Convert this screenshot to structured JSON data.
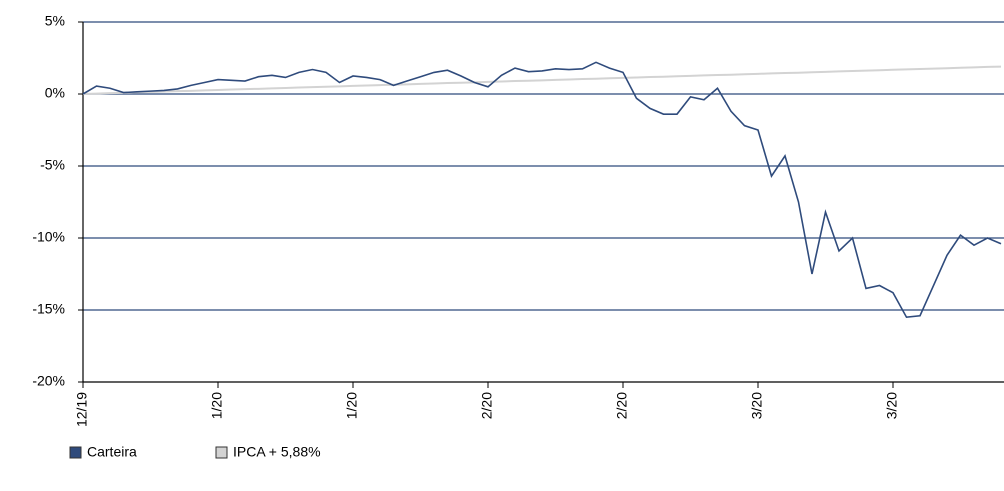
{
  "chart_data": {
    "type": "line",
    "categories": [
      "12/19",
      null,
      null,
      null,
      null,
      null,
      null,
      null,
      null,
      null,
      "1/20",
      null,
      null,
      null,
      null,
      null,
      null,
      null,
      null,
      null,
      "1/20",
      null,
      null,
      null,
      null,
      null,
      null,
      null,
      null,
      null,
      "2/20",
      null,
      null,
      null,
      null,
      null,
      null,
      null,
      null,
      null,
      "2/20",
      null,
      null,
      null,
      null,
      null,
      null,
      null,
      null,
      null,
      "3/20",
      null,
      null,
      null,
      null,
      null,
      null,
      null,
      null,
      null,
      "3/20",
      null,
      null,
      null,
      null,
      null,
      null,
      null,
      null
    ],
    "series": [
      {
        "name": "Carteira",
        "color": "#2f4b7c",
        "values": [
          0,
          0.55,
          0.4,
          0.1,
          0.15,
          0.2,
          0.25,
          0.35,
          0.6,
          0.8,
          1.0,
          0.95,
          0.9,
          1.2,
          1.3,
          1.15,
          1.5,
          1.7,
          1.5,
          0.8,
          1.25,
          1.15,
          1.0,
          0.6,
          0.9,
          1.2,
          1.5,
          1.65,
          1.25,
          0.8,
          0.5,
          1.3,
          1.8,
          1.55,
          1.6,
          1.75,
          1.7,
          1.75,
          2.2,
          1.8,
          1.5,
          -0.3,
          -1.0,
          -1.4,
          -1.4,
          -0.2,
          -0.4,
          0.4,
          -1.2,
          -2.2,
          -2.5,
          -5.7,
          -4.3,
          -7.5,
          -12.5,
          -8.2,
          -10.9,
          -10.0,
          -13.5,
          -13.3,
          -13.8,
          -15.5,
          -15.4,
          -13.3,
          -11.2,
          -9.8,
          -10.5,
          -10.0,
          -10.4
        ]
      },
      {
        "name": "IPCA + 5,88%",
        "color": "#d3d3d3",
        "values": [
          0,
          0.03,
          0.06,
          0.08,
          0.11,
          0.14,
          0.17,
          0.2,
          0.22,
          0.25,
          0.28,
          0.31,
          0.34,
          0.36,
          0.39,
          0.42,
          0.45,
          0.48,
          0.5,
          0.53,
          0.56,
          0.59,
          0.62,
          0.64,
          0.67,
          0.7,
          0.73,
          0.76,
          0.78,
          0.81,
          0.84,
          0.87,
          0.9,
          0.92,
          0.95,
          0.98,
          1.01,
          1.04,
          1.06,
          1.09,
          1.12,
          1.15,
          1.18,
          1.2,
          1.23,
          1.26,
          1.29,
          1.32,
          1.34,
          1.37,
          1.4,
          1.43,
          1.46,
          1.48,
          1.51,
          1.54,
          1.57,
          1.6,
          1.62,
          1.65,
          1.68,
          1.71,
          1.74,
          1.76,
          1.79,
          1.82,
          1.85,
          1.88,
          1.9
        ]
      }
    ],
    "ylim": [
      -20,
      5
    ],
    "yticks": [
      {
        "value": -20,
        "label": "-20%"
      },
      {
        "value": -15,
        "label": "-15%"
      },
      {
        "value": -10,
        "label": "-10%"
      },
      {
        "value": -5,
        "label": "-5%"
      },
      {
        "value": 0,
        "label": "0%"
      },
      {
        "value": 5,
        "label": "5%"
      }
    ],
    "grid": true,
    "legend": "bottom-left"
  }
}
